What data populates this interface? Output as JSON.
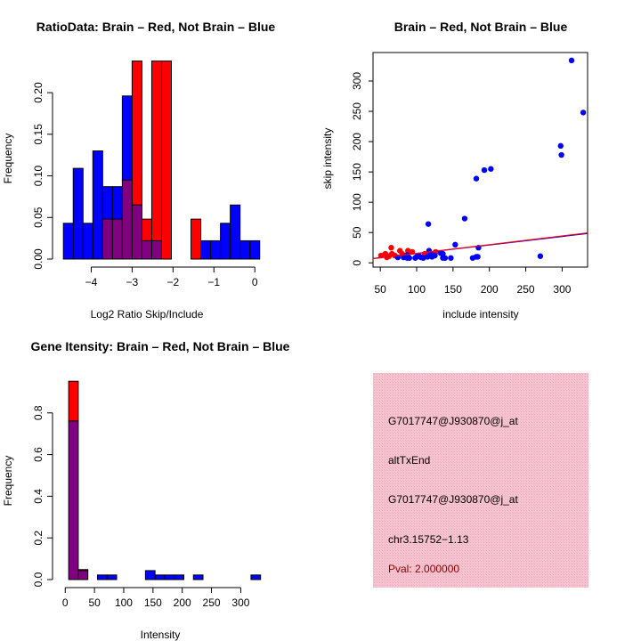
{
  "colors": {
    "red": "#ff0000",
    "blue": "#0000ff",
    "overlap": "#800080",
    "panel_bg": "#f4c0cc",
    "pval_text": "#8b0000"
  },
  "chart_data": [
    {
      "type": "bar",
      "title": "RatioData: Brain – Red, Not Brain – Blue",
      "xlabel": "Log2 Ratio Skip/Include",
      "ylabel": "Frequency",
      "bin_start": -4.68,
      "bin_width": 0.24,
      "xlim": [
        -4.75,
        0.3
      ],
      "ylim": [
        0,
        0.245
      ],
      "xticks": [
        -4,
        -3,
        -2,
        -1,
        0
      ],
      "xtick_labels": [
        "−4",
        "−3",
        "−2",
        "−1",
        "0"
      ],
      "yticks": [
        0,
        0.05,
        0.1,
        0.15,
        0.2
      ],
      "ytick_labels": [
        "0.00",
        "0.05",
        "0.10",
        "0.15",
        "0.20"
      ],
      "series": [
        {
          "name": "Not Brain",
          "color": "blue",
          "values": [
            0.043,
            0.109,
            0.043,
            0.13,
            0.087,
            0.087,
            0.196,
            0.065,
            0.022,
            0.022,
            0,
            0,
            0,
            0,
            0.022,
            0.022,
            0.043,
            0.065,
            0.022,
            0.022
          ]
        },
        {
          "name": "Brain",
          "color": "red",
          "values": [
            0,
            0,
            0,
            0,
            0.048,
            0.048,
            0.095,
            0.238,
            0.048,
            0.238,
            0.238,
            0,
            0,
            0.048,
            0,
            0,
            0,
            0,
            0,
            0
          ]
        }
      ]
    },
    {
      "type": "scatter",
      "title": "Brain – Red, Not Brain – Blue",
      "xlabel": "include intensity",
      "ylabel": "skip intensity",
      "xlim": [
        40,
        335
      ],
      "ylim": [
        -7,
        347
      ],
      "xticks": [
        50,
        100,
        150,
        200,
        250,
        300
      ],
      "yticks": [
        0,
        50,
        100,
        150,
        200,
        250,
        300
      ],
      "series": [
        {
          "name": "Not Brain",
          "color": "blue",
          "points": [
            [
              313,
              334
            ],
            [
              329,
              248
            ],
            [
              298,
              193
            ],
            [
              299,
              178
            ],
            [
              202,
              155
            ],
            [
              193,
              153
            ],
            [
              182,
              139
            ],
            [
              166,
              73
            ],
            [
              116,
              64
            ],
            [
              153,
              30
            ],
            [
              185,
              25
            ],
            [
              270,
              11
            ],
            [
              177,
              8
            ],
            [
              182,
              10
            ],
            [
              184,
              10
            ],
            [
              147,
              8
            ],
            [
              136,
              15
            ],
            [
              136,
              8
            ],
            [
              139,
              8
            ],
            [
              117,
              20
            ],
            [
              119,
              15
            ],
            [
              121,
              10
            ],
            [
              115,
              10
            ],
            [
              98,
              8
            ],
            [
              103,
              12
            ],
            [
              109,
              8
            ],
            [
              90,
              8
            ],
            [
              87,
              13
            ],
            [
              82,
              9
            ],
            [
              74,
              9
            ],
            [
              87,
              8
            ],
            [
              100,
              10
            ],
            [
              106,
              9
            ],
            [
              125,
              12
            ],
            [
              133,
              16
            ]
          ],
          "fit": {
            "intercept": 1.5,
            "slope": 0.14
          }
        },
        {
          "name": "Brain",
          "color": "red",
          "points": [
            [
              51,
              12
            ],
            [
              59,
              9
            ],
            [
              65,
              25
            ],
            [
              66,
              15
            ],
            [
              77,
              20
            ],
            [
              80,
              15
            ],
            [
              88,
              20
            ],
            [
              94,
              18
            ],
            [
              57,
              15
            ],
            [
              123,
              13
            ],
            [
              126,
              18
            ],
            [
              111,
              15
            ],
            [
              70,
              12
            ],
            [
              88,
              15
            ],
            [
              62,
              11
            ],
            [
              84,
              12
            ]
          ],
          "fit": {
            "intercept": 1.2,
            "slope": 0.144
          }
        }
      ]
    },
    {
      "type": "bar",
      "title": "Gene Itensity: Brain – Red, Not Brain – Blue",
      "xlabel": "Intensity",
      "ylabel": "Frequency",
      "bin_start": 5.9,
      "bin_width": 16.4,
      "xlim": [
        -8,
        345
      ],
      "ylim": [
        0,
        0.97
      ],
      "xticks": [
        0,
        50,
        100,
        150,
        200,
        250,
        300
      ],
      "xtick_labels": [
        "0",
        "50",
        "100",
        "150",
        "200",
        "250",
        "300"
      ],
      "yticks": [
        0,
        0.2,
        0.4,
        0.6,
        0.8
      ],
      "ytick_labels": [
        "0.0",
        "0.2",
        "0.4",
        "0.6",
        "0.8"
      ],
      "series": [
        {
          "name": "Not Brain",
          "color": "blue",
          "values": [
            0.761,
            0.043,
            0,
            0.022,
            0.022,
            0,
            0,
            0,
            0.043,
            0.022,
            0.022,
            0.022,
            0,
            0.022,
            0,
            0,
            0,
            0,
            0,
            0.022
          ]
        },
        {
          "name": "Brain",
          "color": "red",
          "values": [
            0.952,
            0.048,
            0,
            0,
            0,
            0,
            0,
            0,
            0,
            0,
            0,
            0,
            0,
            0,
            0,
            0,
            0,
            0,
            0,
            0
          ]
        }
      ]
    }
  ],
  "info_panel": {
    "probe_id": "G7017747@J930870@j_at",
    "event_type": "altTxEnd",
    "probe_id_2": "G7017747@J930870@j_at",
    "location": "chr3.15752−1.13",
    "pval": "Pval: 2.000000"
  }
}
